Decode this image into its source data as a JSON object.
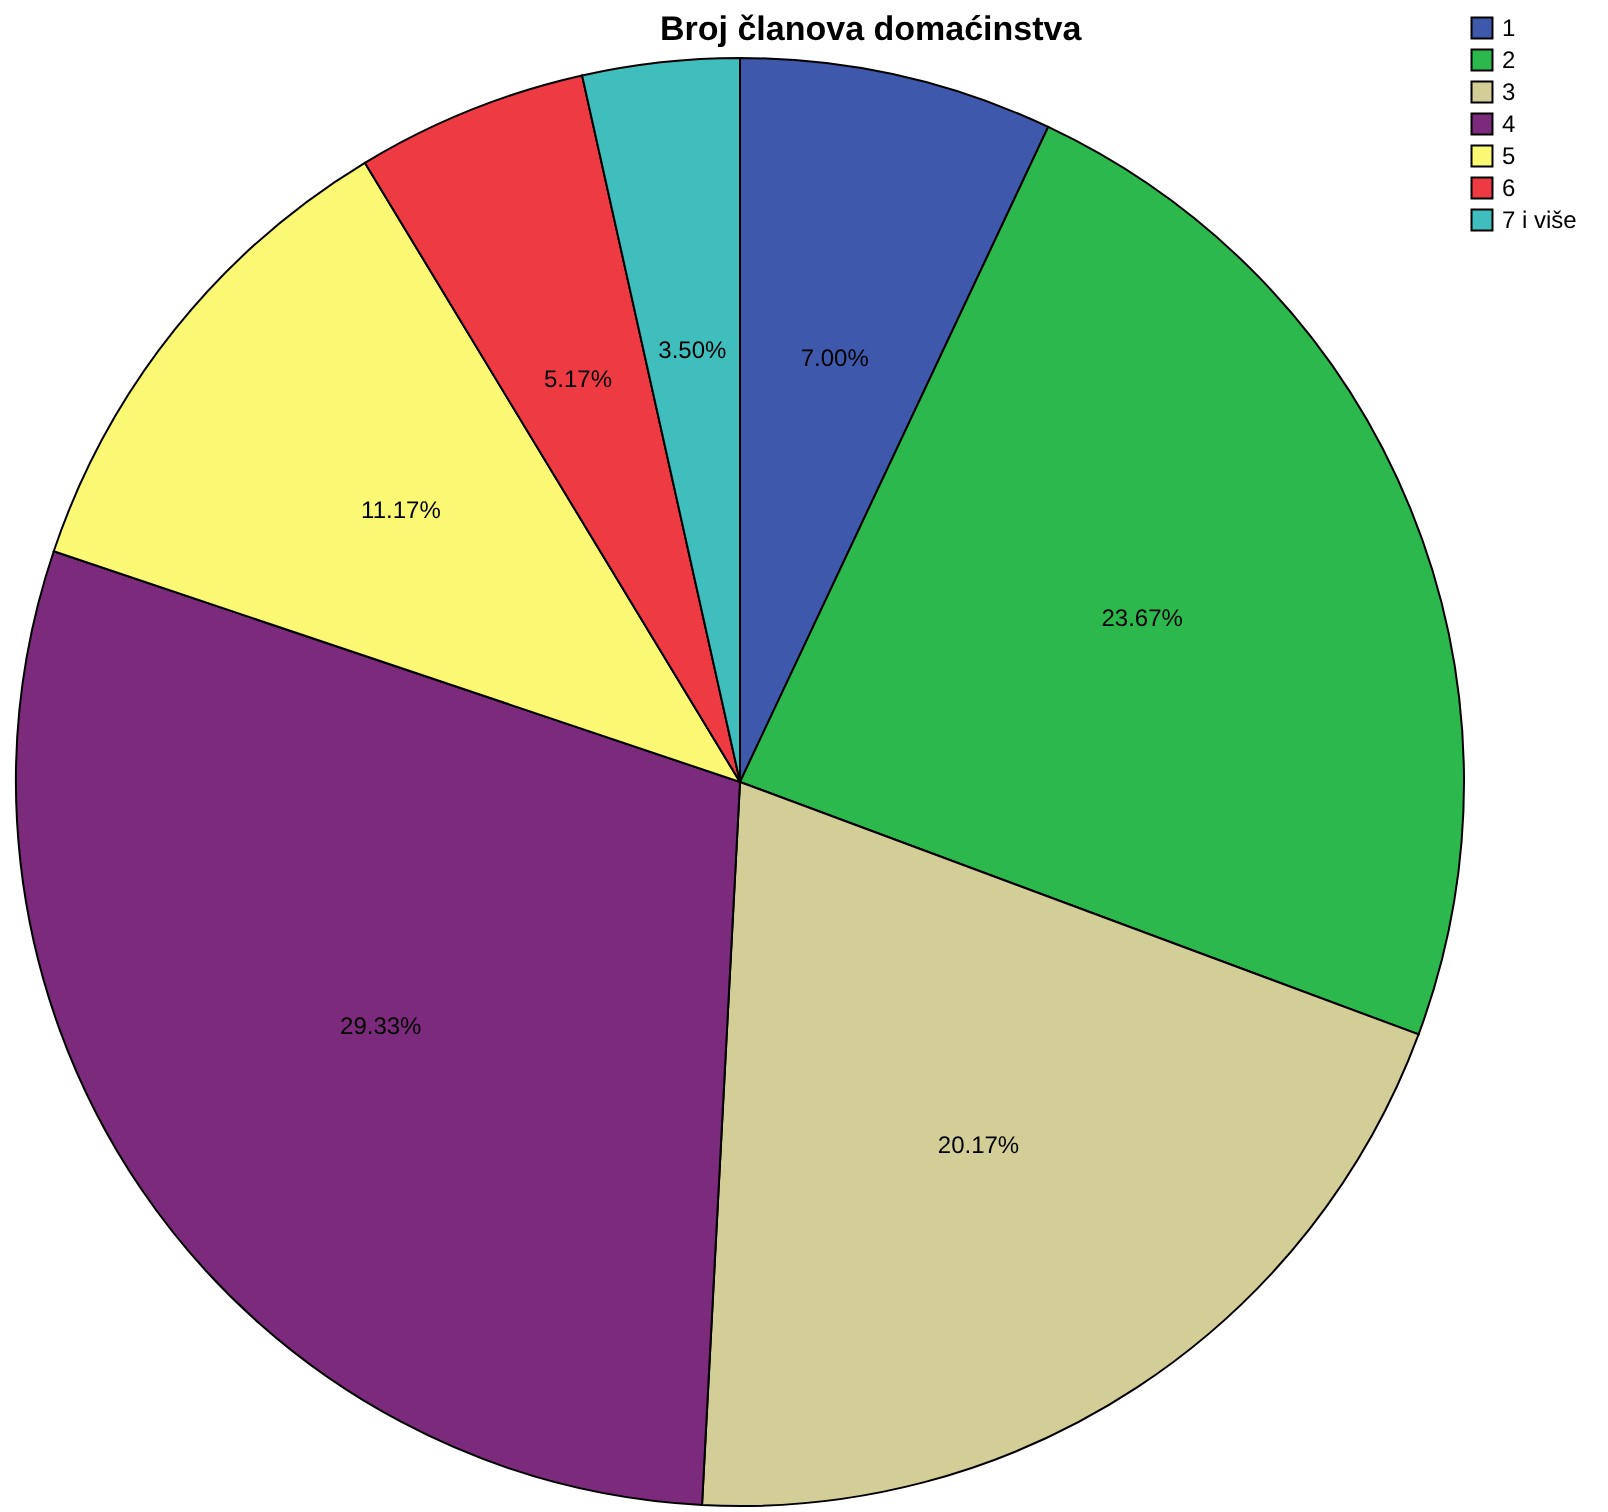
{
  "chart_data": {
    "type": "pie",
    "title": "Broj članova domaćinstva",
    "categories": [
      "1",
      "2",
      "3",
      "4",
      "5",
      "6",
      "7 i više"
    ],
    "values": [
      7.0,
      23.67,
      20.17,
      29.33,
      11.17,
      5.17,
      3.5
    ],
    "colors": [
      "#3e58ac",
      "#2db84d",
      "#d3ce97",
      "#7b2a7c",
      "#fbf873",
      "#ee3a43",
      "#3fbebd"
    ],
    "value_labels": [
      "7.00%",
      "23.67%",
      "20.17%",
      "29.33%",
      "11.17%",
      "5.17%",
      "3.50%"
    ],
    "legend": "top right"
  }
}
